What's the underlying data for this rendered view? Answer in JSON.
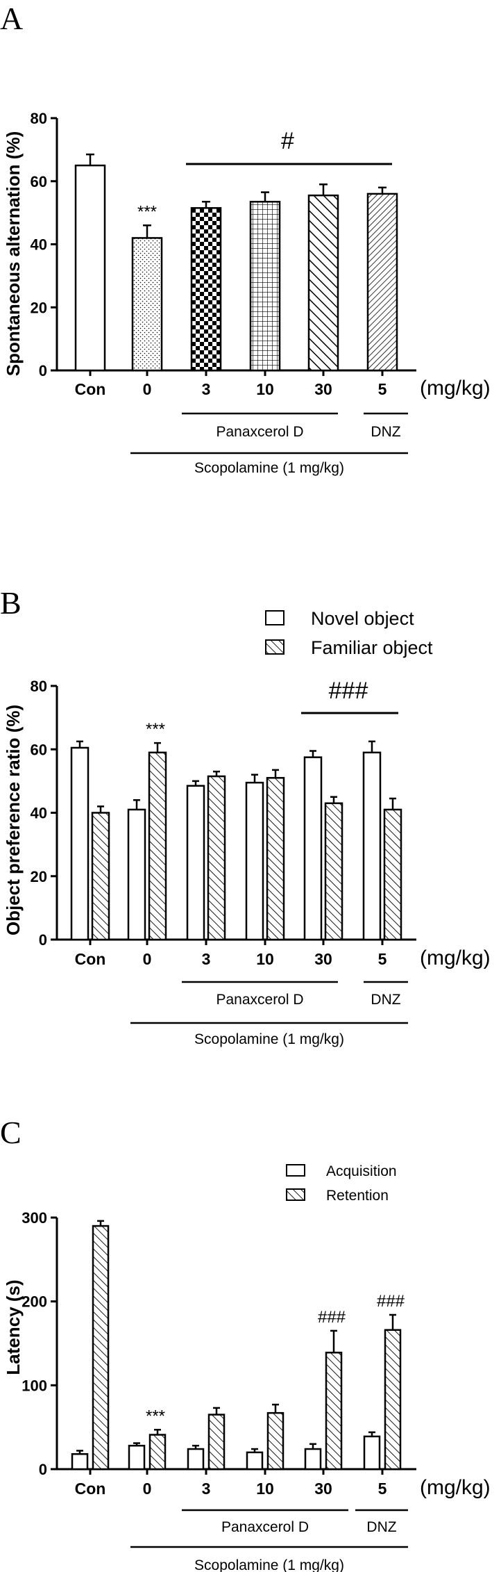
{
  "chart_data": [
    {
      "panel": "A",
      "type": "bar",
      "ylabel": "Spontaneous alternation (%)",
      "ylim": [
        0,
        80
      ],
      "yticks": [
        "0",
        "20",
        "40",
        "60",
        "80"
      ],
      "categories": [
        "Con",
        "0",
        "3",
        "10",
        "30",
        "5"
      ],
      "unit": "(mg/kg)",
      "values": [
        65,
        42,
        51.5,
        53.5,
        55.5,
        56
      ],
      "errors": [
        3.5,
        4,
        2,
        3,
        3.5,
        2
      ],
      "fills": [
        "white",
        "dots",
        "checker",
        "grid",
        "diag-bold",
        "diag-fine"
      ],
      "annotations": [
        {
          "text": "***",
          "category": "0"
        },
        {
          "text": "#",
          "over": [
            "3",
            "5"
          ]
        }
      ],
      "groups": [
        {
          "label": "Panaxcerol D",
          "from": "3",
          "to": "30"
        },
        {
          "label": "DNZ",
          "from": "5",
          "to": "5"
        },
        {
          "label": "Scopolamine (1 mg/kg)",
          "from": "0",
          "to": "5"
        }
      ]
    },
    {
      "panel": "B",
      "type": "bar",
      "ylabel": "Object preference ratio (%)",
      "ylim": [
        0,
        80
      ],
      "yticks": [
        "0",
        "20",
        "40",
        "60",
        "80"
      ],
      "categories": [
        "Con",
        "0",
        "3",
        "10",
        "30",
        "5"
      ],
      "unit": "(mg/kg)",
      "legend_position": "top-right",
      "series": [
        {
          "name": "Novel object",
          "fill": "white",
          "values": [
            60.5,
            41,
            48.5,
            49.5,
            57.5,
            59
          ],
          "errors": [
            2,
            3,
            1.5,
            2.5,
            2,
            3.5
          ]
        },
        {
          "name": "Familiar object",
          "fill": "hatch",
          "values": [
            40,
            59,
            51.5,
            51,
            43,
            41
          ],
          "errors": [
            2,
            3,
            1.5,
            2.5,
            2,
            3.5
          ]
        }
      ],
      "annotations": [
        {
          "text": "***",
          "category": "0"
        },
        {
          "text": "###",
          "over": [
            "30",
            "5"
          ]
        }
      ],
      "groups": [
        {
          "label": "Panaxcerol D",
          "from": "3",
          "to": "30"
        },
        {
          "label": "DNZ",
          "from": "5",
          "to": "5"
        },
        {
          "label": "Scopolamine (1 mg/kg)",
          "from": "0",
          "to": "5"
        }
      ]
    },
    {
      "panel": "C",
      "type": "bar",
      "ylabel": "Latency (s)",
      "ylim": [
        0,
        300
      ],
      "yticks": [
        "0",
        "100",
        "200",
        "300"
      ],
      "categories": [
        "Con",
        "0",
        "3",
        "10",
        "30",
        "5"
      ],
      "unit": "(mg/kg)",
      "legend_position": "top-right",
      "series": [
        {
          "name": "Acquisition",
          "fill": "white",
          "values": [
            18,
            28,
            24,
            20,
            24,
            39
          ],
          "errors": [
            4,
            3,
            4,
            4,
            6,
            5
          ]
        },
        {
          "name": "Retention",
          "fill": "hatch",
          "values": [
            290,
            41,
            65,
            67,
            139,
            166
          ],
          "errors": [
            6,
            6,
            8,
            10,
            26,
            18
          ]
        }
      ],
      "annotations": [
        {
          "text": "***",
          "category": "0"
        },
        {
          "text": "###",
          "category": "30"
        },
        {
          "text": "###",
          "category": "5"
        }
      ],
      "groups": [
        {
          "label": "Panaxcerol D",
          "from": "3",
          "to": "30"
        },
        {
          "label": "DNZ",
          "from": "5",
          "to": "5"
        },
        {
          "label": "Scopolamine (1 mg/kg)",
          "from": "0",
          "to": "5"
        }
      ]
    }
  ]
}
